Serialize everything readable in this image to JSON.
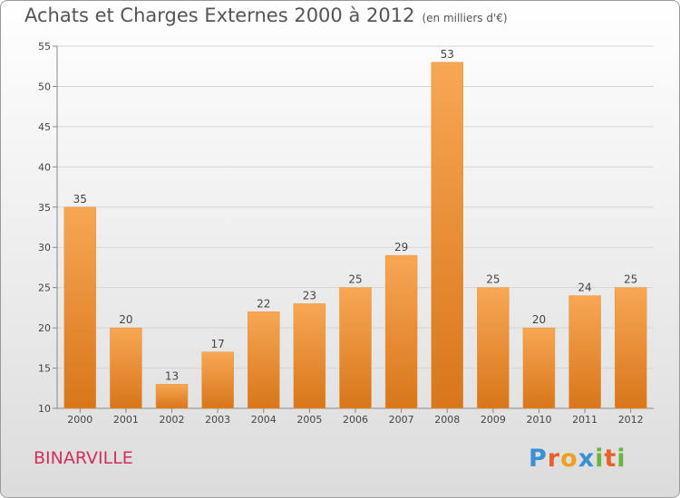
{
  "title": "Achats et Charges Externes 2000 à 2012",
  "unit": "(en milliers d'€)",
  "commune": "BINARVILLE",
  "brand": "Proxiti",
  "colors": {
    "bar_light": "#f7a754",
    "bar_dark": "#d8761a",
    "title": "#555555",
    "commune": "#d0305e",
    "grid": "#d6d6d6",
    "axis": "#888888"
  },
  "chart_data": {
    "type": "bar",
    "categories": [
      "2000",
      "2001",
      "2002",
      "2003",
      "2004",
      "2005",
      "2006",
      "2007",
      "2008",
      "2009",
      "2010",
      "2011",
      "2012"
    ],
    "values": [
      35,
      20,
      13,
      17,
      22,
      23,
      25,
      29,
      53,
      25,
      20,
      24,
      25
    ],
    "ylim": [
      10,
      55
    ],
    "yticks": [
      10,
      15,
      20,
      25,
      30,
      35,
      40,
      45,
      50,
      55
    ],
    "grid": true,
    "title": "Achats et Charges Externes 2000 à 2012",
    "ylabel": "(en milliers d'€)"
  }
}
